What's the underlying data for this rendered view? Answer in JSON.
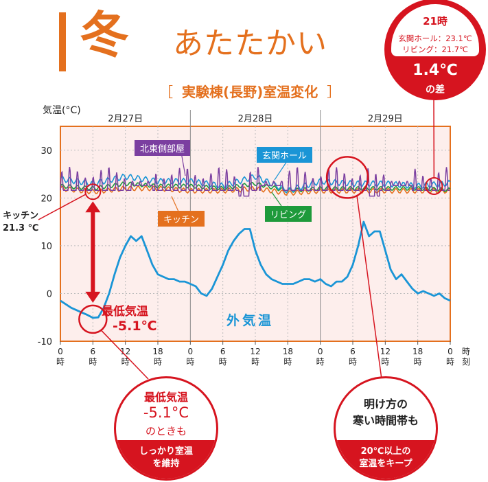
{
  "header": {
    "season": "冬",
    "subtitle": "あたたかい",
    "experiment": "実験棟(長野)室温変化",
    "bracket_open": "［",
    "bracket_close": "］"
  },
  "info_box": {
    "time": "21時",
    "line1": "玄関ホール：23.1℃",
    "line2": "リビング：21.7℃",
    "difference": "1.4℃",
    "caption": "の差"
  },
  "annotations": {
    "kitchen_name": "キッチン",
    "kitchen_value": "21.3 ℃",
    "min_title": "最低気温",
    "min_value": "-5.1℃",
    "outside_label": "外気温",
    "note_left": {
      "title": "最低気温",
      "value": "-5.1°C",
      "sub": "のときも",
      "bottom1": "しっかり室温",
      "bottom2": "を維持"
    },
    "note_right": {
      "line1": "明け方の",
      "line2": "寒い時間帯も",
      "bottom1": "20℃以上の",
      "bottom2": "室温をキープ"
    }
  },
  "colors": {
    "accent": "#e4701e",
    "red": "#d6141f",
    "outside": "#1a95d6",
    "north_east": "#7b3fa0",
    "entrance": "#1a95d6",
    "kitchen": "#e4701e",
    "living": "#1e9a3b",
    "plot_bg": "#fdeeec"
  },
  "chart_data": {
    "type": "line",
    "ylabel": "気温(°C)",
    "xlabel": "時刻",
    "ylim": [
      -10,
      35
    ],
    "yticks": [
      -10,
      0,
      10,
      20,
      30
    ],
    "dates": [
      "2月27日",
      "2月28日",
      "2月29日"
    ],
    "xtick_labels": [
      "0時",
      "6時",
      "12時",
      "18時",
      "0時",
      "6時",
      "12時",
      "18時",
      "0時",
      "6時",
      "12時",
      "18時",
      "0時"
    ],
    "xlim_hours": [
      0,
      72
    ],
    "series": [
      {
        "name": "外気温",
        "x": [
          0,
          2,
          4,
          5,
          6,
          7,
          8,
          9,
          10,
          11,
          12,
          13,
          14,
          15,
          16,
          17,
          18,
          19,
          20,
          21,
          22,
          23,
          24,
          25,
          26,
          27,
          28,
          29,
          30,
          31,
          32,
          33,
          34,
          35,
          36,
          37,
          38,
          39,
          40,
          41,
          42,
          43,
          44,
          45,
          46,
          47,
          48,
          49,
          50,
          51,
          52,
          53,
          54,
          55,
          56,
          57,
          58,
          59,
          60,
          61,
          62,
          63,
          64,
          65,
          66,
          67,
          68,
          69,
          70,
          71,
          72
        ],
        "values": [
          -1.5,
          -3,
          -4,
          -4.5,
          -5.1,
          -5.0,
          -3,
          0,
          4,
          7.5,
          10,
          12,
          11,
          12,
          9,
          6,
          4,
          3.5,
          3,
          3,
          2.5,
          2.5,
          2,
          1.5,
          0,
          -0.5,
          1,
          3.5,
          6,
          9,
          11,
          12.5,
          13.5,
          13.5,
          9,
          6,
          4,
          3,
          2.5,
          2,
          2,
          2,
          2.5,
          3,
          3,
          2.5,
          3,
          2,
          1.5,
          2.5,
          2.5,
          3.5,
          6,
          10,
          15,
          12,
          13,
          13,
          9,
          5,
          3,
          4,
          2.5,
          1,
          0,
          0.5,
          0,
          -0.5,
          0,
          -1,
          -1.5
        ]
      },
      {
        "name": "北東側部屋",
        "x": [
          0,
          72
        ],
        "values": [
          24,
          24
        ],
        "range": [
          21,
          26.5
        ]
      },
      {
        "name": "玄関ホール",
        "x": [
          0,
          6,
          12,
          18,
          24,
          30,
          36,
          42,
          48,
          54,
          60,
          66,
          72
        ],
        "values": [
          24,
          23,
          24.5,
          23.5,
          23.5,
          22.5,
          24.5,
          21.5,
          23.5,
          23,
          23,
          22.5,
          23.1
        ]
      },
      {
        "name": "キッチン",
        "x": [
          0,
          6,
          12,
          18,
          24,
          30,
          36,
          42,
          48,
          54,
          60,
          66,
          72
        ],
        "values": [
          22,
          21.3,
          22,
          22,
          21.5,
          21.5,
          22,
          21,
          21.5,
          21.5,
          21.5,
          21.5,
          21.5
        ]
      },
      {
        "name": "リビング",
        "x": [
          0,
          6,
          12,
          18,
          24,
          30,
          36,
          42,
          48,
          54,
          60,
          66,
          72
        ],
        "values": [
          22.5,
          22,
          23,
          22.5,
          22.5,
          22,
          23,
          21.5,
          22,
          22,
          22,
          22,
          21.7
        ]
      }
    ],
    "highlights": [
      {
        "label": "キッチン 21.3℃",
        "x": 6,
        "y": 21.3
      },
      {
        "label": "最低気温 -5.1℃",
        "x": 6,
        "y": -5.1
      },
      {
        "label": "明け方",
        "x": 53,
        "y": 24
      },
      {
        "label": "21時",
        "x": 69,
        "y": 22.5
      }
    ]
  }
}
